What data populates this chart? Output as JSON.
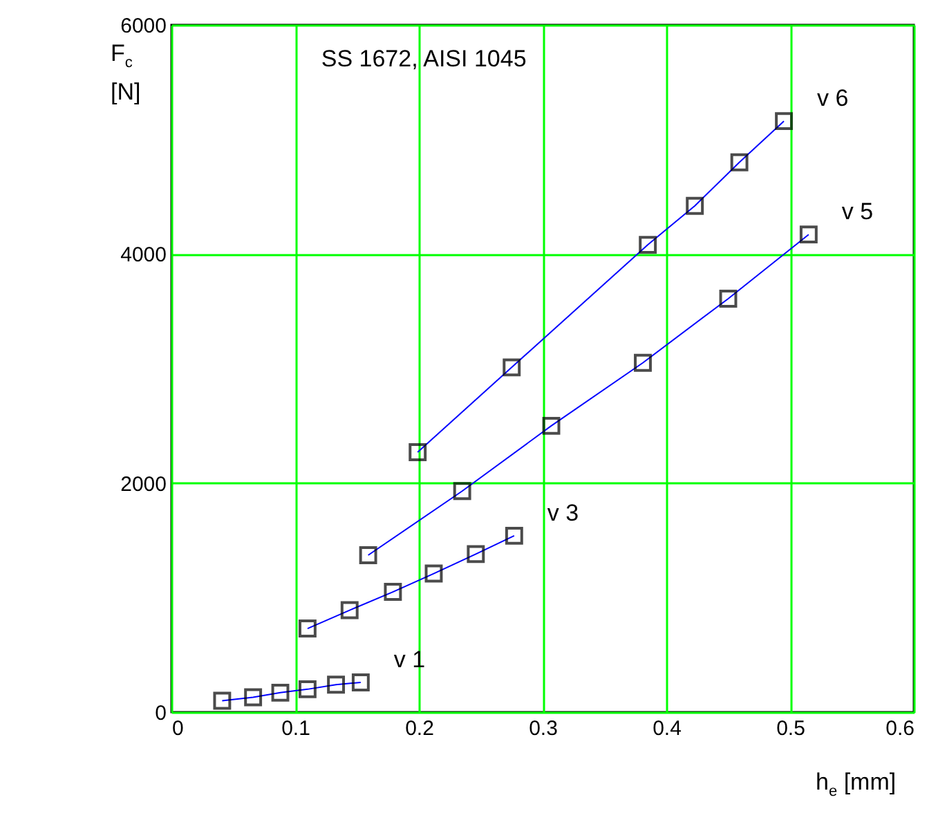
{
  "chart_data": {
    "type": "line",
    "xlabel": "h$_{e}$ [mm]",
    "ylabel": "F$_{c}$ [N]",
    "annotations": [
      "SS 1672,  AISI 1045"
    ],
    "xlim": [
      0,
      0.6
    ],
    "xticks": [
      0,
      0.1,
      0.2,
      0.3,
      0.4,
      0.5,
      0.6
    ],
    "ylim": [
      0,
      6000
    ],
    "yticks": [
      0,
      2000,
      4000,
      6000
    ],
    "grid": true,
    "marker": "square",
    "line_style": "solid",
    "series": [
      {
        "name": "v 1",
        "color": "#0000ff",
        "x": [
          0.041,
          0.066,
          0.088,
          0.11,
          0.133,
          0.153
        ],
        "values": [
          100,
          130,
          170,
          200,
          240,
          260
        ]
      },
      {
        "name": "v 3",
        "color": "#0000ff",
        "x": [
          0.11,
          0.144,
          0.179,
          0.212,
          0.246,
          0.277
        ],
        "values": [
          730,
          890,
          1050,
          1210,
          1380,
          1540
        ]
      },
      {
        "name": "v 5",
        "color": "#0000ff",
        "x": [
          0.159,
          0.235,
          0.307,
          0.381,
          0.45,
          0.515
        ],
        "values": [
          1370,
          1930,
          2500,
          3050,
          3610,
          4170
        ]
      },
      {
        "name": "v 6",
        "color": "#0000ff",
        "x": [
          0.199,
          0.275,
          0.385,
          0.423,
          0.459,
          0.495
        ],
        "values": [
          2270,
          3010,
          4080,
          4420,
          4800,
          5160
        ]
      }
    ]
  }
}
